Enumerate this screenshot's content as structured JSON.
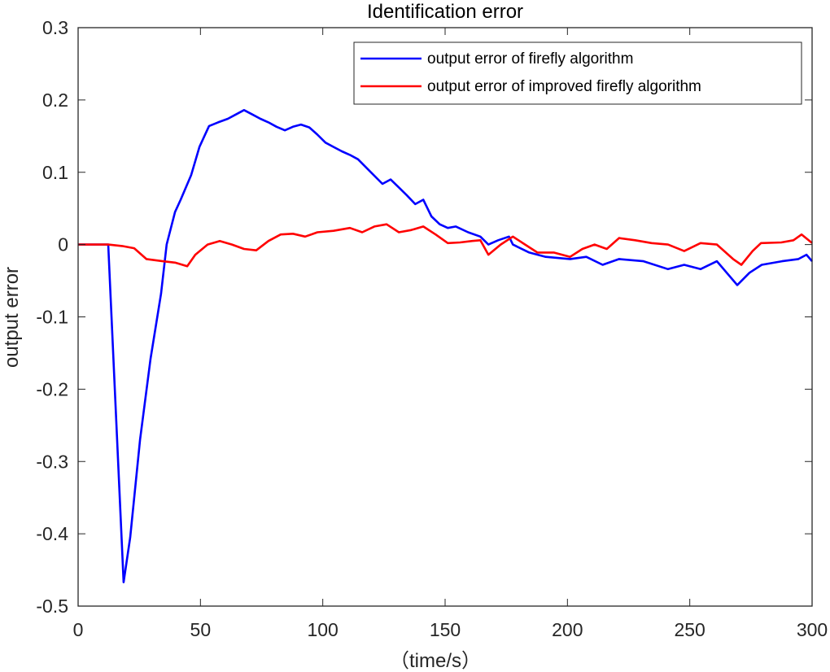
{
  "chart_data": {
    "type": "line",
    "title": "Identification error",
    "xlabel": "（time/s）",
    "ylabel": "output error",
    "xlim": [
      0,
      300
    ],
    "ylim": [
      -0.5,
      0.3
    ],
    "xticks": [
      "0",
      "50",
      "100",
      "150",
      "200",
      "250",
      "300"
    ],
    "yticks": [
      "0.3",
      "0.2",
      "0.1",
      "0",
      "-0.1",
      "-0.2",
      "-0.3",
      "-0.4",
      "-0.5"
    ],
    "grid": false,
    "legend_position": "upper right",
    "series": [
      {
        "name": "output error of firefly algorithm",
        "color": "#0000ff",
        "x": [
          0,
          12.3,
          18.6,
          21.3,
          25.3,
          29.6,
          33.9,
          36.2,
          39.6,
          41.9,
          46.2,
          49.6,
          53.5,
          57.2,
          61.2,
          64.5,
          67.8,
          71.2,
          74.5,
          77.8,
          81.1,
          84.5,
          87.8,
          91.1,
          94.5,
          97.8,
          101.1,
          104.4,
          107.8,
          111.1,
          114.4,
          119.4,
          124.4,
          127.7,
          131.1,
          134.4,
          137.8,
          141.1,
          144.4,
          147.8,
          151.1,
          154.4,
          159.4,
          164.4,
          167.7,
          171.7,
          176.1,
          177.7,
          184.4,
          191.1,
          201.1,
          207.7,
          214.4,
          221.1,
          231.1,
          241.1,
          247.7,
          254.4,
          261.1,
          269.4,
          274.4,
          279.4,
          287.7,
          294.4,
          297.7,
          300
        ],
        "values": [
          0,
          0,
          -0.467,
          -0.405,
          -0.27,
          -0.158,
          -0.068,
          0,
          0.045,
          0.062,
          0.096,
          0.135,
          0.164,
          0.169,
          0.174,
          0.18,
          0.186,
          0.18,
          0.174,
          0.169,
          0.163,
          0.158,
          0.163,
          0.166,
          0.162,
          0.152,
          0.141,
          0.135,
          0.129,
          0.124,
          0.118,
          0.101,
          0.084,
          0.09,
          0.079,
          0.068,
          0.056,
          0.062,
          0.039,
          0.028,
          0.023,
          0.025,
          0.017,
          0.011,
          0,
          0.006,
          0.011,
          0,
          -0.011,
          -0.017,
          -0.02,
          -0.017,
          -0.028,
          -0.02,
          -0.023,
          -0.034,
          -0.028,
          -0.034,
          -0.023,
          -0.056,
          -0.039,
          -0.028,
          -0.023,
          -0.02,
          -0.014,
          -0.023
        ]
      },
      {
        "name": "output error of improved firefly algorithm",
        "color": "#ff0000",
        "x": [
          0,
          12.3,
          18.0,
          22.9,
          27.9,
          34.6,
          39.6,
          44.6,
          47.9,
          52.9,
          57.9,
          62.9,
          67.8,
          72.8,
          77.8,
          82.8,
          87.8,
          92.8,
          97.8,
          104.4,
          111.1,
          116.1,
          121.1,
          126.1,
          131.1,
          136.1,
          141.1,
          146.1,
          151.1,
          156.1,
          161.1,
          164.4,
          167.7,
          172.7,
          177.7,
          182.7,
          187.7,
          194.4,
          201.1,
          206.1,
          211.1,
          216.1,
          221.1,
          227.7,
          234.4,
          241.1,
          247.7,
          254.4,
          261.1,
          267.7,
          271.1,
          275.7,
          279.1,
          287.4,
          292.4,
          295.7,
          300
        ],
        "values": [
          0,
          0,
          -0.002,
          -0.005,
          -0.02,
          -0.023,
          -0.025,
          -0.03,
          -0.014,
          0,
          0.005,
          0,
          -0.006,
          -0.008,
          0.005,
          0.014,
          0.015,
          0.011,
          0.017,
          0.019,
          0.023,
          0.017,
          0.025,
          0.028,
          0.017,
          0.02,
          0.025,
          0.014,
          0.002,
          0.003,
          0.005,
          0.006,
          -0.014,
          0,
          0.011,
          0,
          -0.011,
          -0.011,
          -0.017,
          -0.006,
          0,
          -0.006,
          0.009,
          0.006,
          0.002,
          0,
          -0.009,
          0.002,
          0,
          -0.02,
          -0.028,
          -0.009,
          0.002,
          0.003,
          0.006,
          0.014,
          0.002
        ]
      }
    ]
  },
  "legend": {
    "items": [
      {
        "label": "output error of firefly algorithm",
        "color": "#0000ff"
      },
      {
        "label": "output error of improved firefly algorithm",
        "color": "#ff0000"
      }
    ]
  }
}
